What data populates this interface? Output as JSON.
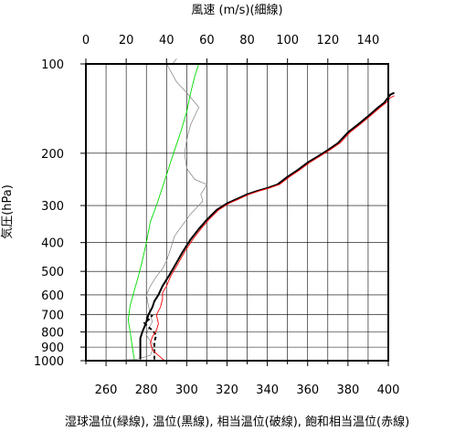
{
  "chart_data": {
    "type": "line",
    "title": "",
    "top_axis": {
      "label": "風速 (m/s)(細線)",
      "range": [
        0,
        150
      ],
      "ticks": [
        0,
        20,
        40,
        60,
        80,
        100,
        120,
        140
      ]
    },
    "bottom_axis": {
      "label": "湿球温位(緑線), 温位(黒線), 相当温位(破線), 飽和相当温位(赤線)",
      "range": [
        250,
        400
      ],
      "ticks": [
        260,
        280,
        300,
        320,
        340,
        360,
        380,
        400
      ]
    },
    "y_axis": {
      "label": "気圧(hPa)",
      "scale": "log",
      "reversed": true,
      "range": [
        1000,
        100
      ],
      "ticks": [
        100,
        200,
        300,
        400,
        500,
        600,
        700,
        800,
        900,
        1000
      ]
    },
    "grid": true,
    "series": [
      {
        "name": "風速",
        "axis": "top",
        "color": "#808080",
        "style": "thin",
        "points": [
          [
            10,
            1000
          ],
          [
            25,
            990
          ],
          [
            32,
            960
          ],
          [
            33,
            920
          ],
          [
            34,
            890
          ],
          [
            32,
            860
          ],
          [
            30,
            820
          ],
          [
            31,
            780
          ],
          [
            33,
            740
          ],
          [
            32,
            700
          ],
          [
            31,
            650
          ],
          [
            30,
            600
          ],
          [
            32,
            560
          ],
          [
            35,
            520
          ],
          [
            38,
            490
          ],
          [
            40,
            460
          ],
          [
            42,
            420
          ],
          [
            44,
            380
          ],
          [
            52,
            320
          ],
          [
            58,
            290
          ],
          [
            57,
            275
          ],
          [
            60,
            255
          ],
          [
            54,
            245
          ],
          [
            50,
            225
          ],
          [
            49,
            200
          ],
          [
            50,
            180
          ],
          [
            52,
            160
          ],
          [
            56,
            140
          ],
          [
            50,
            125
          ],
          [
            45,
            115
          ],
          [
            40,
            100
          ],
          [
            43,
            100
          ],
          [
            45,
            96
          ]
        ]
      },
      {
        "name": "湿球温位",
        "axis": "bottom",
        "color": "#00dd00",
        "style": "solid",
        "points": [
          [
            274,
            990
          ],
          [
            273,
            900
          ],
          [
            272,
            800
          ],
          [
            271,
            730
          ],
          [
            272,
            650
          ],
          [
            274,
            580
          ],
          [
            276,
            520
          ],
          [
            278,
            460
          ],
          [
            280,
            400
          ],
          [
            282,
            340
          ],
          [
            285,
            300
          ],
          [
            288,
            260
          ],
          [
            291,
            225
          ],
          [
            294,
            195
          ],
          [
            297,
            170
          ],
          [
            300,
            145
          ],
          [
            302,
            125
          ],
          [
            304,
            110
          ],
          [
            306,
            100
          ]
        ]
      },
      {
        "name": "温位",
        "axis": "bottom",
        "color": "#000000",
        "style": "thick",
        "points": [
          [
            277,
            990
          ],
          [
            277,
            900
          ],
          [
            277,
            840
          ],
          [
            278,
            800
          ],
          [
            279,
            770
          ],
          [
            280,
            740
          ],
          [
            281,
            700
          ],
          [
            283,
            660
          ],
          [
            284,
            630
          ],
          [
            286,
            600
          ],
          [
            288,
            560
          ],
          [
            291,
            520
          ],
          [
            294,
            480
          ],
          [
            298,
            430
          ],
          [
            302,
            390
          ],
          [
            306,
            360
          ],
          [
            310,
            335
          ],
          [
            315,
            310
          ],
          [
            320,
            295
          ],
          [
            325,
            285
          ],
          [
            330,
            275
          ],
          [
            335,
            268
          ],
          [
            340,
            262
          ],
          [
            345,
            255
          ],
          [
            350,
            240
          ],
          [
            355,
            228
          ],
          [
            360,
            215
          ],
          [
            365,
            205
          ],
          [
            370,
            195
          ],
          [
            375,
            185
          ],
          [
            380,
            170
          ],
          [
            385,
            160
          ],
          [
            390,
            150
          ],
          [
            395,
            140
          ],
          [
            398,
            135
          ],
          [
            401,
            127
          ],
          [
            403,
            125
          ]
        ]
      },
      {
        "name": "相当温位",
        "axis": "bottom",
        "color": "#000000",
        "style": "dashed",
        "points": [
          [
            284,
            990
          ],
          [
            284,
            920
          ],
          [
            284,
            860
          ],
          [
            285,
            820
          ],
          [
            283,
            790
          ],
          [
            281,
            770
          ],
          [
            279,
            745
          ],
          [
            282,
            720
          ],
          [
            283,
            700
          ]
        ]
      },
      {
        "name": "飽和相当温位",
        "axis": "bottom",
        "color": "#ff0000",
        "style": "solid",
        "points": [
          [
            289,
            1000
          ],
          [
            286,
            960
          ],
          [
            283,
            920
          ],
          [
            282,
            870
          ],
          [
            283,
            830
          ],
          [
            285,
            790
          ],
          [
            286,
            750
          ],
          [
            285,
            700
          ],
          [
            287,
            660
          ],
          [
            288,
            620
          ],
          [
            288,
            590
          ],
          [
            290,
            560
          ],
          [
            292,
            520
          ],
          [
            295,
            480
          ],
          [
            299,
            430
          ],
          [
            303,
            390
          ],
          [
            307,
            360
          ],
          [
            311,
            335
          ],
          [
            316,
            310
          ],
          [
            321,
            295
          ],
          [
            326,
            285
          ],
          [
            331,
            275
          ],
          [
            336,
            268
          ],
          [
            341,
            262
          ],
          [
            346,
            255
          ],
          [
            351,
            240
          ],
          [
            356,
            228
          ],
          [
            361,
            215
          ],
          [
            366,
            205
          ],
          [
            371,
            195
          ],
          [
            376,
            185
          ],
          [
            381,
            170
          ],
          [
            386,
            160
          ],
          [
            391,
            150
          ],
          [
            396,
            140
          ],
          [
            399,
            135
          ],
          [
            401,
            130
          ],
          [
            403,
            128
          ]
        ]
      }
    ]
  }
}
